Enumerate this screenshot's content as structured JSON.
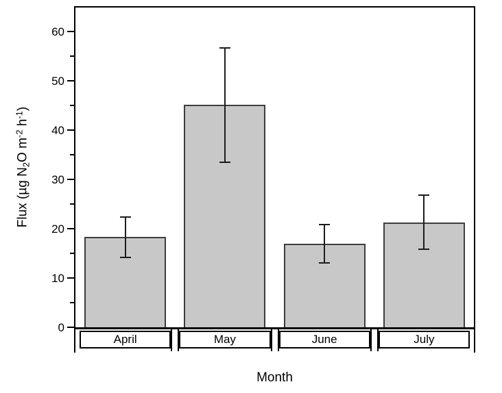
{
  "chart_data": {
    "type": "bar",
    "title": "",
    "xlabel": "Month",
    "ylabel": "Flux (µg N2O m-2 h-1)",
    "ylabel_segments": [
      {
        "t": "Flux (µg N"
      },
      {
        "t": "2",
        "style": "sub"
      },
      {
        "t": "O m"
      },
      {
        "t": "-2",
        "style": "sup"
      },
      {
        "t": " h"
      },
      {
        "t": "-1",
        "style": "sup"
      },
      {
        "t": ")"
      }
    ],
    "categories": [
      "April",
      "May",
      "June",
      "July"
    ],
    "values": [
      18.3,
      45.1,
      17.0,
      21.3
    ],
    "error_bars": [
      4.1,
      11.6,
      3.9,
      5.5
    ],
    "y_major_ticks": [
      0,
      10,
      20,
      30,
      40,
      50,
      60
    ],
    "y_minor_ticks": [
      5,
      15,
      25,
      35,
      45,
      55
    ],
    "ylim": [
      0,
      65
    ],
    "grid": false,
    "legend": null,
    "boxed_x_labels": true,
    "colors": {
      "bar_fill": "#c8c8c8",
      "bar_border": "#3d3d3d",
      "error_bar": "#1c1c1c",
      "axis": "#000000",
      "background": "#ffffff"
    }
  }
}
